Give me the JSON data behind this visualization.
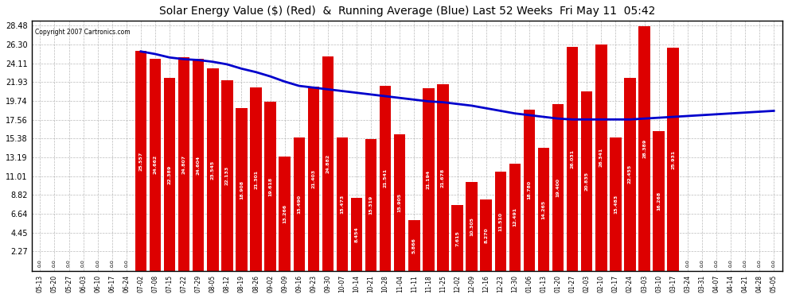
{
  "title": "Solar Energy Value ($) (Red)  &  Running Average (Blue) Last 52 Weeks  Fri May 11  05:42",
  "copyright": "Copyright 2007 Cartronics.com",
  "bar_color": "#dd0000",
  "line_color": "#0000cc",
  "bg_color": "#ffffff",
  "grid_color": "#aaaaaa",
  "yticks": [
    2.27,
    4.45,
    6.64,
    8.82,
    11.01,
    13.19,
    15.38,
    17.56,
    19.74,
    21.93,
    24.11,
    26.3,
    28.48
  ],
  "categories": [
    "05-13",
    "05-20",
    "05-27",
    "06-03",
    "06-10",
    "06-17",
    "06-24",
    "07-02",
    "07-08",
    "07-15",
    "07-22",
    "07-29",
    "08-05",
    "08-12",
    "08-19",
    "08-26",
    "09-02",
    "09-09",
    "09-16",
    "09-23",
    "09-30",
    "10-07",
    "10-14",
    "10-21",
    "10-28",
    "11-04",
    "11-11",
    "11-18",
    "11-25",
    "12-02",
    "12-09",
    "12-16",
    "12-23",
    "12-30",
    "01-06",
    "01-13",
    "01-20",
    "01-27",
    "02-03",
    "02-10",
    "02-17",
    "02-24",
    "03-03",
    "03-10",
    "03-17",
    "03-24",
    "03-31",
    "04-07",
    "04-14",
    "04-21",
    "04-28",
    "05-05"
  ],
  "values": [
    0.0,
    0.0,
    0.0,
    0.0,
    0.0,
    0.0,
    0.0,
    25.557,
    24.662,
    22.389,
    24.807,
    24.604,
    23.545,
    22.133,
    18.908,
    21.301,
    19.618,
    13.266,
    15.49,
    21.403,
    24.882,
    15.473,
    8.454,
    15.319,
    21.541,
    15.905,
    5.866,
    21.194,
    21.678,
    7.615,
    10.305,
    8.27,
    11.51,
    12.491,
    18.78,
    14.265,
    19.4,
    26.031,
    20.835,
    26.341,
    15.483,
    22.455,
    28.389,
    16.268,
    25.931,
    0.0,
    0.0,
    0.0,
    0.0,
    0.0,
    0.0,
    0.0
  ],
  "avg_values": [
    null,
    null,
    null,
    null,
    null,
    null,
    null,
    25.5,
    25.2,
    24.8,
    24.6,
    24.5,
    24.3,
    24.0,
    23.5,
    23.1,
    22.6,
    22.0,
    21.5,
    21.3,
    21.1,
    20.9,
    20.7,
    20.5,
    20.3,
    20.1,
    19.9,
    19.7,
    19.6,
    19.4,
    19.2,
    18.9,
    18.6,
    18.3,
    18.1,
    17.9,
    17.7,
    17.6,
    17.6,
    17.6,
    17.6,
    17.6,
    17.7,
    17.8,
    17.9,
    18.0,
    18.1,
    18.2,
    18.3,
    18.4,
    18.5,
    18.6
  ]
}
